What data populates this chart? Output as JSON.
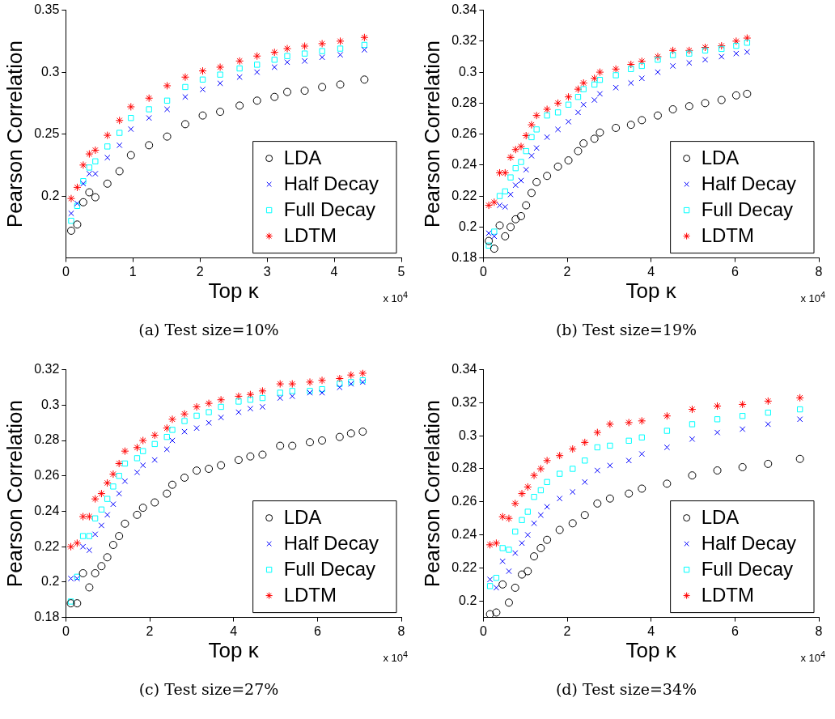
{
  "chart_data": [
    {
      "type": "scatter",
      "xlabel": "Top κ",
      "ylabel": "Pearson Correlation",
      "annotations": [
        "x 10$^{4}$",
        "(a)  Test size=10%"
      ],
      "legend": "bottom right",
      "xlim": [
        0,
        5
      ],
      "ylim": [
        0.15,
        0.35
      ],
      "xticks": [
        0,
        1,
        2,
        3,
        4,
        5
      ],
      "yticks": [
        0.2,
        0.25,
        0.3,
        0.35
      ],
      "x": [
        0.08,
        0.17,
        0.26,
        0.35,
        0.44,
        0.62,
        0.8,
        0.97,
        1.24,
        1.51,
        1.78,
        2.04,
        2.3,
        2.59,
        2.85,
        3.11,
        3.3,
        3.56,
        3.82,
        4.09,
        4.45
      ],
      "series": [
        {
          "name": "LDA",
          "color": "#000000",
          "marker": "circle",
          "values": [
            0.172,
            0.177,
            0.195,
            0.203,
            0.199,
            0.21,
            0.22,
            0.233,
            0.241,
            0.248,
            0.258,
            0.265,
            0.268,
            0.273,
            0.277,
            0.28,
            0.284,
            0.285,
            0.288,
            0.29,
            0.294
          ]
        },
        {
          "name": "Half Decay",
          "color": "#0000ff",
          "marker": "cross",
          "values": [
            0.186,
            0.194,
            0.21,
            0.218,
            0.218,
            0.231,
            0.241,
            0.254,
            0.263,
            0.27,
            0.28,
            0.286,
            0.291,
            0.296,
            0.3,
            0.304,
            0.308,
            0.309,
            0.312,
            0.314,
            0.318
          ]
        },
        {
          "name": "Full Decay",
          "color": "#00ffff",
          "marker": "square",
          "values": [
            0.18,
            0.192,
            0.212,
            0.223,
            0.228,
            0.24,
            0.251,
            0.263,
            0.27,
            0.277,
            0.288,
            0.294,
            0.298,
            0.303,
            0.306,
            0.31,
            0.313,
            0.315,
            0.317,
            0.319,
            0.322
          ]
        },
        {
          "name": "LDTM",
          "color": "#ff0000",
          "values": [
            0.198,
            0.207,
            0.225,
            0.234,
            0.237,
            0.249,
            0.261,
            0.272,
            0.279,
            0.289,
            0.296,
            0.301,
            0.304,
            0.309,
            0.313,
            0.316,
            0.319,
            0.321,
            0.323,
            0.325,
            0.328
          ]
        }
      ]
    },
    {
      "type": "scatter",
      "xlabel": "Top κ",
      "ylabel": "Pearson Correlation",
      "annotations": [
        "x 10$^{4}$",
        "(b)  Test size=19%"
      ],
      "legend": "bottom right",
      "xlim": [
        0,
        8
      ],
      "ylim": [
        0.18,
        0.34
      ],
      "xticks": [
        0,
        2,
        4,
        6,
        8
      ],
      "yticks": [
        0.18,
        0.2,
        0.22,
        0.24,
        0.26,
        0.28,
        0.3,
        0.32,
        0.34
      ],
      "x": [
        0.13,
        0.26,
        0.39,
        0.52,
        0.65,
        0.77,
        0.9,
        1.02,
        1.15,
        1.27,
        1.52,
        1.78,
        2.03,
        2.26,
        2.39,
        2.65,
        2.78,
        3.16,
        3.52,
        3.78,
        4.16,
        4.52,
        4.91,
        5.29,
        5.68,
        6.03,
        6.29
      ],
      "series": [
        {
          "name": "LDA",
          "color": "#000000",
          "marker": "circle",
          "values": [
            0.191,
            0.186,
            0.201,
            0.194,
            0.2,
            0.205,
            0.207,
            0.214,
            0.222,
            0.229,
            0.233,
            0.239,
            0.243,
            0.249,
            0.254,
            0.257,
            0.261,
            0.264,
            0.266,
            0.269,
            0.272,
            0.276,
            0.278,
            0.28,
            0.282,
            0.285,
            0.286
          ]
        },
        {
          "name": "Half Decay",
          "color": "#0000ff",
          "marker": "cross",
          "values": [
            0.196,
            0.194,
            0.214,
            0.213,
            0.221,
            0.227,
            0.23,
            0.237,
            0.246,
            0.251,
            0.258,
            0.263,
            0.268,
            0.274,
            0.279,
            0.282,
            0.286,
            0.29,
            0.293,
            0.296,
            0.3,
            0.304,
            0.306,
            0.308,
            0.31,
            0.312,
            0.313
          ]
        },
        {
          "name": "Full Decay",
          "color": "#00ffff",
          "marker": "square",
          "values": [
            0.188,
            0.197,
            0.22,
            0.223,
            0.232,
            0.238,
            0.242,
            0.249,
            0.258,
            0.263,
            0.272,
            0.274,
            0.279,
            0.284,
            0.289,
            0.292,
            0.295,
            0.298,
            0.302,
            0.304,
            0.308,
            0.311,
            0.312,
            0.314,
            0.315,
            0.317,
            0.319
          ]
        },
        {
          "name": "LDTM",
          "color": "#ff0000",
          "values": [
            0.214,
            0.216,
            0.235,
            0.235,
            0.245,
            0.25,
            0.252,
            0.259,
            0.266,
            0.272,
            0.276,
            0.28,
            0.284,
            0.289,
            0.293,
            0.296,
            0.3,
            0.302,
            0.305,
            0.307,
            0.31,
            0.314,
            0.314,
            0.316,
            0.317,
            0.32,
            0.322
          ]
        }
      ]
    },
    {
      "type": "scatter",
      "xlabel": "Top κ",
      "ylabel": "Pearson Correlation",
      "annotations": [
        "x 10$^{4}$",
        "(c)  Test size=27%"
      ],
      "legend": "bottom right",
      "xlim": [
        0,
        8
      ],
      "ylim": [
        0.18,
        0.32
      ],
      "xticks": [
        0,
        2,
        4,
        6,
        8
      ],
      "yticks": [
        0.18,
        0.2,
        0.22,
        0.24,
        0.26,
        0.28,
        0.3,
        0.32
      ],
      "x": [
        0.12,
        0.27,
        0.41,
        0.56,
        0.7,
        0.85,
        0.99,
        1.13,
        1.27,
        1.41,
        1.7,
        1.84,
        2.12,
        2.41,
        2.54,
        2.83,
        3.12,
        3.41,
        3.7,
        4.12,
        4.4,
        4.69,
        5.11,
        5.4,
        5.82,
        6.11,
        6.53,
        6.8,
        7.08
      ],
      "series": [
        {
          "name": "LDA",
          "color": "#000000",
          "marker": "circle",
          "values": [
            0.188,
            0.188,
            0.205,
            0.197,
            0.205,
            0.209,
            0.214,
            0.221,
            0.226,
            0.233,
            0.238,
            0.242,
            0.245,
            0.25,
            0.255,
            0.259,
            0.263,
            0.264,
            0.266,
            0.269,
            0.271,
            0.272,
            0.277,
            0.277,
            0.279,
            0.28,
            0.282,
            0.284,
            0.285
          ]
        },
        {
          "name": "Half Decay",
          "color": "#0000ff",
          "marker": "cross",
          "values": [
            0.202,
            0.202,
            0.22,
            0.218,
            0.227,
            0.232,
            0.238,
            0.244,
            0.25,
            0.257,
            0.262,
            0.266,
            0.269,
            0.275,
            0.28,
            0.285,
            0.287,
            0.29,
            0.293,
            0.296,
            0.298,
            0.299,
            0.304,
            0.305,
            0.307,
            0.307,
            0.31,
            0.312,
            0.313
          ]
        },
        {
          "name": "Full Decay",
          "color": "#00ffff",
          "marker": "square",
          "values": [
            0.189,
            0.203,
            0.226,
            0.226,
            0.236,
            0.241,
            0.247,
            0.254,
            0.26,
            0.267,
            0.27,
            0.274,
            0.278,
            0.282,
            0.286,
            0.291,
            0.294,
            0.296,
            0.299,
            0.302,
            0.303,
            0.304,
            0.307,
            0.308,
            0.308,
            0.309,
            0.312,
            0.313,
            0.314
          ]
        },
        {
          "name": "LDTM",
          "color": "#ff0000",
          "values": [
            0.22,
            0.222,
            0.237,
            0.237,
            0.247,
            0.25,
            0.256,
            0.261,
            0.267,
            0.274,
            0.276,
            0.28,
            0.283,
            0.287,
            0.292,
            0.295,
            0.299,
            0.301,
            0.303,
            0.305,
            0.306,
            0.308,
            0.312,
            0.312,
            0.313,
            0.314,
            0.315,
            0.317,
            0.318
          ]
        }
      ]
    },
    {
      "type": "scatter",
      "xlabel": "Top κ",
      "ylabel": "Pearson Correlation",
      "annotations": [
        "x 10$^{4}$",
        "(d)  Test size=34%"
      ],
      "legend": "bottom right",
      "xlim": [
        0,
        8
      ],
      "ylim": [
        0.19,
        0.34
      ],
      "xticks": [
        0,
        2,
        4,
        6,
        8
      ],
      "yticks": [
        0.2,
        0.22,
        0.24,
        0.26,
        0.28,
        0.3,
        0.32,
        0.34
      ],
      "x": [
        0.16,
        0.31,
        0.46,
        0.61,
        0.76,
        0.92,
        1.06,
        1.21,
        1.37,
        1.52,
        1.82,
        2.13,
        2.42,
        2.72,
        3.02,
        3.47,
        3.78,
        4.38,
        4.98,
        5.58,
        6.18,
        6.79,
        7.55
      ],
      "series": [
        {
          "name": "LDA",
          "color": "#000000",
          "marker": "circle",
          "values": [
            0.192,
            0.193,
            0.21,
            0.199,
            0.208,
            0.216,
            0.218,
            0.227,
            0.232,
            0.237,
            0.243,
            0.247,
            0.252,
            0.259,
            0.262,
            0.265,
            0.268,
            0.271,
            0.276,
            0.279,
            0.281,
            0.283,
            0.286
          ]
        },
        {
          "name": "Half Decay",
          "color": "#0000ff",
          "marker": "cross",
          "values": [
            0.213,
            0.208,
            0.224,
            0.218,
            0.229,
            0.235,
            0.24,
            0.247,
            0.252,
            0.257,
            0.262,
            0.266,
            0.272,
            0.279,
            0.282,
            0.285,
            0.289,
            0.293,
            0.298,
            0.302,
            0.304,
            0.307,
            0.31
          ]
        },
        {
          "name": "Full Decay",
          "color": "#00ffff",
          "marker": "square",
          "values": [
            0.209,
            0.214,
            0.232,
            0.231,
            0.242,
            0.249,
            0.254,
            0.263,
            0.267,
            0.272,
            0.277,
            0.28,
            0.285,
            0.293,
            0.294,
            0.297,
            0.299,
            0.303,
            0.307,
            0.31,
            0.312,
            0.314,
            0.316
          ]
        },
        {
          "name": "LDTM",
          "color": "#ff0000",
          "values": [
            0.234,
            0.235,
            0.251,
            0.25,
            0.259,
            0.265,
            0.269,
            0.276,
            0.28,
            0.285,
            0.288,
            0.292,
            0.296,
            0.302,
            0.307,
            0.308,
            0.309,
            0.312,
            0.316,
            0.318,
            0.319,
            0.321,
            0.323
          ]
        }
      ]
    }
  ]
}
